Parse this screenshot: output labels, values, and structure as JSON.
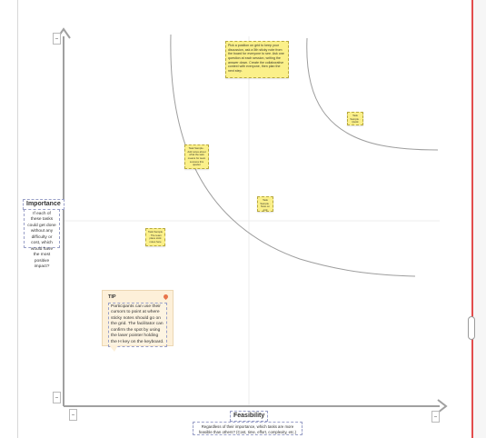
{
  "axes": {
    "y_title": "Importance",
    "y_desc": "If each of these tasks could get done without any difficulty or cost, which would have the most positive impact?",
    "x_title": "Feasibility",
    "x_desc": "Regardless of their importance, which tasks are more feasible than others? (Cost, time, effort, complexity, etc.)"
  },
  "instruction_note": "Pick a position on grid to keep your discussion, ask a 5th sticky note from the board for everyone to see. Ask one question at each session, writing the answer down. Create the collaborative context with everyone, then plan the next step.",
  "sticky_notes": [
    "Task Sample · The team place stick notes here",
    "Task Sample · Add notes about what the task means for team success this quarter",
    "Task Sample · Note on grid",
    "Task Sample · Place here",
    "Task Sample · Quick win idea"
  ],
  "tip": {
    "title": "TIP",
    "body": "Participants can use their cursors to point at where sticky notes should go on the grid. The facilitator can confirm the spot by using the laser pointer holding the H key on the keyboard."
  },
  "colors": {
    "sticky": "#fbf08a",
    "tip_bg": "#fdf0d9",
    "axis": "#a0a0a0",
    "curve": "#9e9e9e",
    "red_line": "#e34d4d"
  },
  "icons": [
    "corner-handle-icon",
    "pin-icon",
    "scroll-handle-icon"
  ]
}
